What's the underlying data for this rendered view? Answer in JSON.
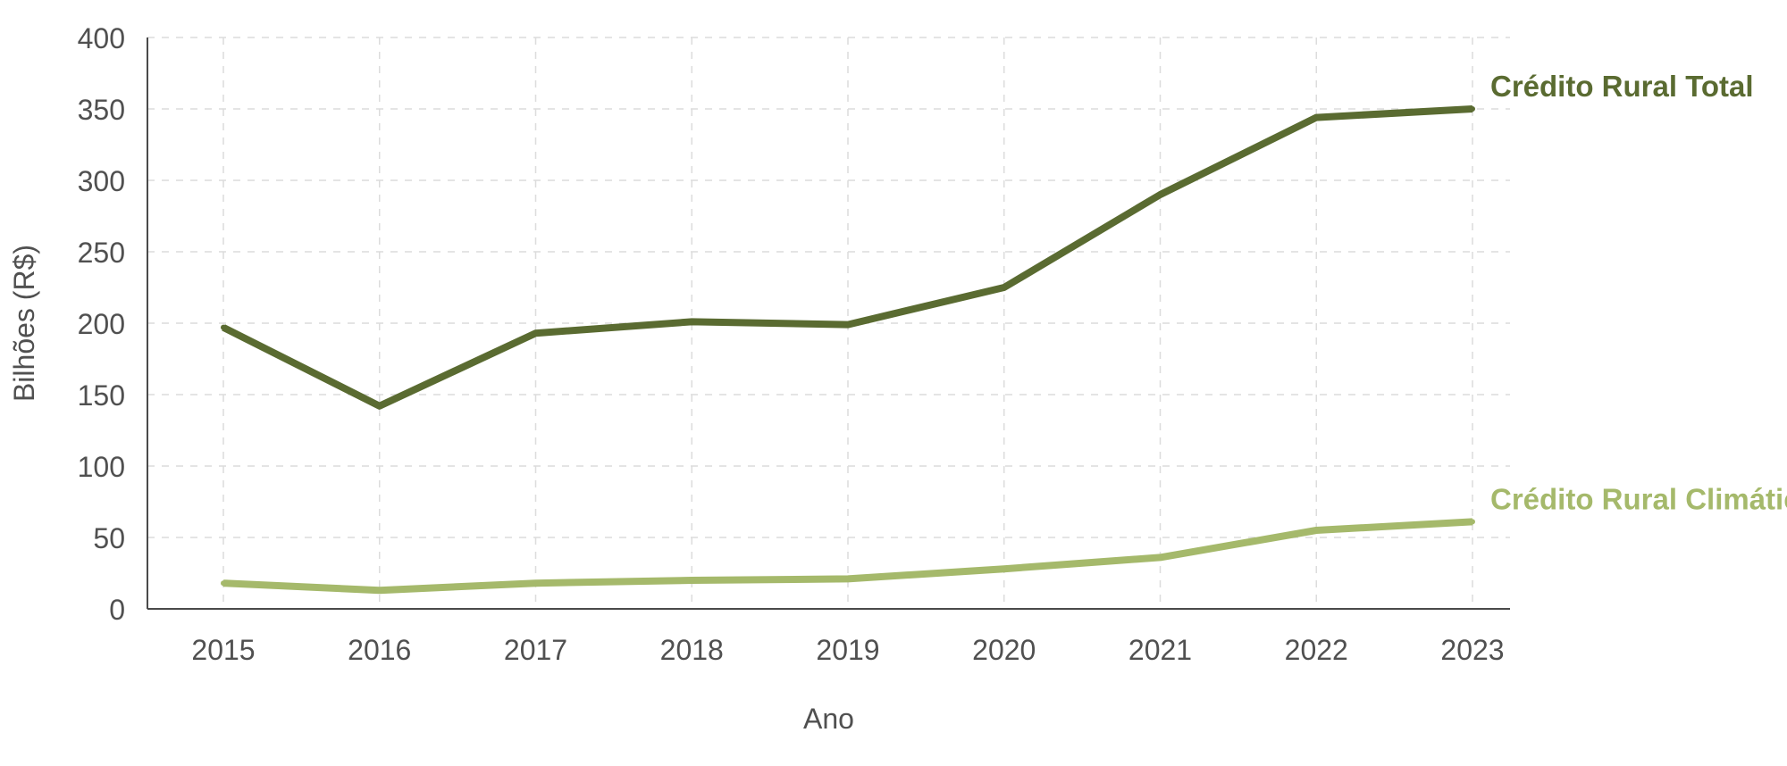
{
  "chart_data": {
    "type": "line",
    "title": "",
    "xlabel": "Ano",
    "ylabel": "Bilhões (R$)",
    "x": [
      "2015",
      "2016",
      "2017",
      "2018",
      "2019",
      "2020",
      "2021",
      "2022",
      "2023"
    ],
    "yticks": [
      "0",
      "50",
      "100",
      "150",
      "200",
      "250",
      "300",
      "350",
      "400"
    ],
    "ylim": [
      0,
      400
    ],
    "grid": true,
    "legend": "labels at right end of lines",
    "series": [
      {
        "name": "Crédito Rural Total",
        "color": "#5a6b31",
        "values": [
          197,
          142,
          193,
          201,
          199,
          225,
          290,
          344,
          350
        ]
      },
      {
        "name": "Crédito Rural Climático",
        "color": "#a5b96b",
        "values": [
          18,
          13,
          18,
          20,
          21,
          28,
          36,
          55,
          61
        ]
      }
    ]
  }
}
